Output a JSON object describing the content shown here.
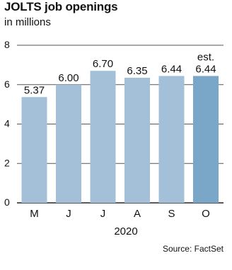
{
  "title": "JOLTS job openings",
  "subtitle": "in millions",
  "source": "Source: FactSet",
  "chart_data": {
    "type": "bar",
    "title": "JOLTS job openings",
    "subtitle": "in millions",
    "xlabel": "2020",
    "ylabel": "",
    "categories": [
      "M",
      "J",
      "J",
      "A",
      "S",
      "O"
    ],
    "values": [
      5.37,
      6.0,
      6.7,
      6.35,
      6.44,
      6.44
    ],
    "value_labels": [
      "5.37",
      "6.00",
      "6.70",
      "6.35",
      "6.44",
      "6.44"
    ],
    "estimate_index": 5,
    "estimate_label": "est.",
    "ylim": [
      0,
      8
    ],
    "yticks": [
      0,
      2,
      4,
      6,
      8
    ],
    "grid": true,
    "colors": {
      "bar": "#a3c0d8",
      "estimate_bar": "#7aa6c8",
      "grid": "#555555",
      "text": "#111111"
    }
  }
}
